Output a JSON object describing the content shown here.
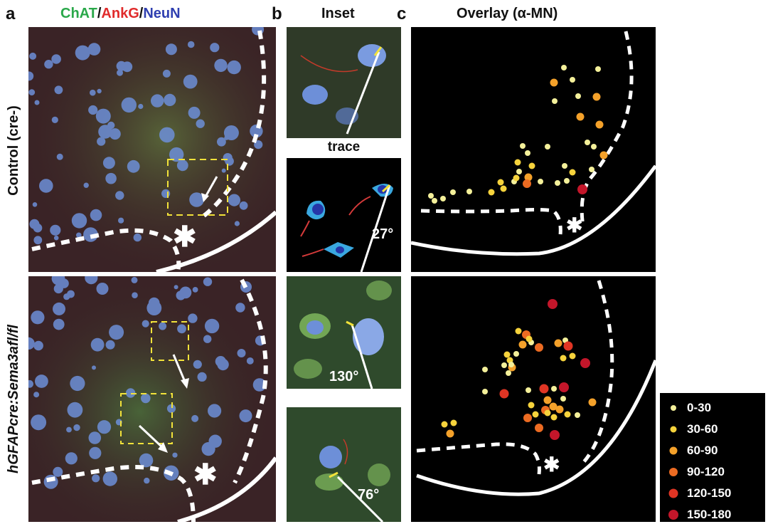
{
  "panels": {
    "a": {
      "letter": "a",
      "title_parts": [
        {
          "text": "ChAT",
          "color": "#2aa84a"
        },
        {
          "text": "/",
          "color": "#111111"
        },
        {
          "text": "AnkG",
          "color": "#e02b2b"
        },
        {
          "text": "/",
          "color": "#111111"
        },
        {
          "text": "NeuN",
          "color": "#2f3fb0"
        }
      ]
    },
    "b": {
      "letter": "b",
      "title": "Inset",
      "trace_label": "trace"
    },
    "c": {
      "letter": "c",
      "title": "Overlay (α-MN)"
    }
  },
  "rows": {
    "control": "Control (cre-)",
    "mutant": "hGFAPcre:Sema3afl/fl"
  },
  "angles": {
    "trace": "27°",
    "mutant_top": "130°",
    "mutant_bottom": "76°"
  },
  "asterisk": "✱",
  "legend": [
    {
      "label": "0-30",
      "color": "#f4f09a"
    },
    {
      "label": "30-60",
      "color": "#f6d33c"
    },
    {
      "label": "60-90",
      "color": "#f4a12a"
    },
    {
      "label": "90-120",
      "color": "#ec6b22"
    },
    {
      "label": "120-150",
      "color": "#e03524"
    },
    {
      "label": "150-180",
      "color": "#c3162a"
    }
  ],
  "chart_data": [
    {
      "type": "scatter",
      "name": "control",
      "x_units": "px",
      "y_units": "px",
      "points": [
        [
          793,
          95,
          0
        ],
        [
          841,
          97,
          0
        ],
        [
          779,
          116,
          2
        ],
        [
          805,
          112,
          0
        ],
        [
          813,
          135,
          0
        ],
        [
          839,
          136,
          2
        ],
        [
          780,
          142,
          0
        ],
        [
          816,
          164,
          2
        ],
        [
          843,
          175,
          2
        ],
        [
          735,
          205,
          0
        ],
        [
          742,
          215,
          0
        ],
        [
          770,
          206,
          0
        ],
        [
          826,
          200,
          0
        ],
        [
          835,
          206,
          0
        ],
        [
          849,
          218,
          2
        ],
        [
          728,
          228,
          1
        ],
        [
          748,
          233,
          1
        ],
        [
          794,
          233,
          0
        ],
        [
          805,
          242,
          1
        ],
        [
          832,
          238,
          0
        ],
        [
          743,
          249,
          2
        ],
        [
          704,
          256,
          1
        ],
        [
          723,
          255,
          0
        ],
        [
          760,
          255,
          0
        ],
        [
          784,
          257,
          0
        ],
        [
          797,
          254,
          0
        ],
        [
          819,
          266,
          5
        ],
        [
          726,
          250,
          1
        ],
        [
          708,
          265,
          1
        ],
        [
          691,
          270,
          1
        ],
        [
          660,
          269,
          0
        ],
        [
          611,
          282,
          0
        ],
        [
          623,
          279,
          0
        ],
        [
          637,
          270,
          0
        ],
        [
          606,
          275,
          0
        ],
        [
          741,
          258,
          3
        ],
        [
          730,
          241,
          0
        ]
      ]
    },
    {
      "type": "scatter",
      "name": "mutant",
      "x_units": "px",
      "y_units": "px",
      "points": [
        [
          777,
          427,
          5
        ],
        [
          729,
          465,
          1
        ],
        [
          740,
          470,
          3
        ],
        [
          735,
          484,
          2
        ],
        [
          747,
          481,
          0
        ],
        [
          758,
          488,
          3
        ],
        [
          744,
          476,
          1
        ],
        [
          785,
          482,
          2
        ],
        [
          795,
          478,
          0
        ],
        [
          799,
          486,
          4
        ],
        [
          792,
          503,
          1
        ],
        [
          805,
          500,
          1
        ],
        [
          713,
          498,
          1
        ],
        [
          717,
          506,
          1
        ],
        [
          726,
          497,
          0
        ],
        [
          720,
          516,
          2
        ],
        [
          709,
          513,
          0
        ],
        [
          715,
          524,
          0
        ],
        [
          682,
          519,
          0
        ],
        [
          719,
          512,
          0
        ],
        [
          823,
          510,
          5
        ],
        [
          793,
          544,
          5
        ],
        [
          743,
          548,
          0
        ],
        [
          765,
          546,
          4
        ],
        [
          779,
          546,
          0
        ],
        [
          770,
          562,
          2
        ],
        [
          778,
          571,
          2
        ],
        [
          787,
          575,
          2
        ],
        [
          779,
          586,
          1
        ],
        [
          798,
          582,
          1
        ],
        [
          747,
          569,
          1
        ],
        [
          753,
          582,
          1
        ],
        [
          742,
          587,
          3
        ],
        [
          758,
          601,
          3
        ],
        [
          780,
          611,
          5
        ],
        [
          709,
          553,
          4
        ],
        [
          682,
          550,
          0
        ],
        [
          767,
          576,
          3
        ],
        [
          812,
          583,
          0
        ],
        [
          833,
          565,
          2
        ],
        [
          625,
          596,
          1
        ],
        [
          638,
          594,
          1
        ],
        [
          633,
          609,
          2
        ],
        [
          792,
          560,
          0
        ],
        [
          770,
          580,
          1
        ]
      ]
    }
  ]
}
